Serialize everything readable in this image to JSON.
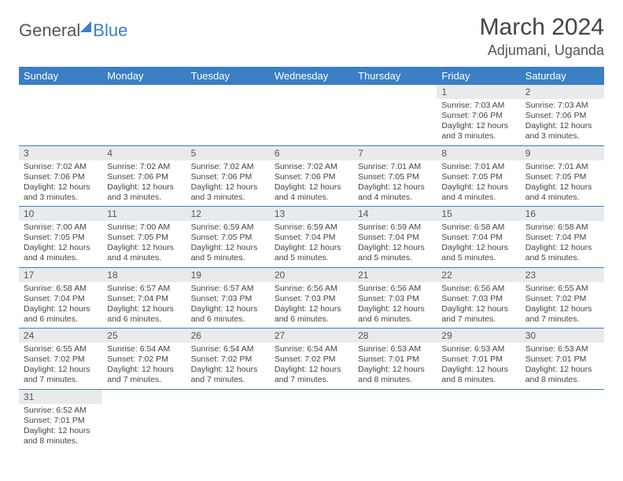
{
  "brand": {
    "part1": "General",
    "part2": "Blue"
  },
  "title": "March 2024",
  "location": "Adjumani, Uganda",
  "colors": {
    "header_bg": "#3b7fc4",
    "header_fg": "#ffffff",
    "row_divider": "#3b7fc4",
    "daynum_bg": "#e9eaeb",
    "text": "#444444",
    "page_bg": "#ffffff"
  },
  "daynames": [
    "Sunday",
    "Monday",
    "Tuesday",
    "Wednesday",
    "Thursday",
    "Friday",
    "Saturday"
  ],
  "weeks": [
    [
      {
        "blank": true
      },
      {
        "blank": true
      },
      {
        "blank": true
      },
      {
        "blank": true
      },
      {
        "blank": true
      },
      {
        "n": "1",
        "sr": "7:03 AM",
        "ss": "7:06 PM",
        "dl": "12 hours and 3 minutes."
      },
      {
        "n": "2",
        "sr": "7:03 AM",
        "ss": "7:06 PM",
        "dl": "12 hours and 3 minutes."
      }
    ],
    [
      {
        "n": "3",
        "sr": "7:02 AM",
        "ss": "7:06 PM",
        "dl": "12 hours and 3 minutes."
      },
      {
        "n": "4",
        "sr": "7:02 AM",
        "ss": "7:06 PM",
        "dl": "12 hours and 3 minutes."
      },
      {
        "n": "5",
        "sr": "7:02 AM",
        "ss": "7:06 PM",
        "dl": "12 hours and 3 minutes."
      },
      {
        "n": "6",
        "sr": "7:02 AM",
        "ss": "7:06 PM",
        "dl": "12 hours and 4 minutes."
      },
      {
        "n": "7",
        "sr": "7:01 AM",
        "ss": "7:05 PM",
        "dl": "12 hours and 4 minutes."
      },
      {
        "n": "8",
        "sr": "7:01 AM",
        "ss": "7:05 PM",
        "dl": "12 hours and 4 minutes."
      },
      {
        "n": "9",
        "sr": "7:01 AM",
        "ss": "7:05 PM",
        "dl": "12 hours and 4 minutes."
      }
    ],
    [
      {
        "n": "10",
        "sr": "7:00 AM",
        "ss": "7:05 PM",
        "dl": "12 hours and 4 minutes."
      },
      {
        "n": "11",
        "sr": "7:00 AM",
        "ss": "7:05 PM",
        "dl": "12 hours and 4 minutes."
      },
      {
        "n": "12",
        "sr": "6:59 AM",
        "ss": "7:05 PM",
        "dl": "12 hours and 5 minutes."
      },
      {
        "n": "13",
        "sr": "6:59 AM",
        "ss": "7:04 PM",
        "dl": "12 hours and 5 minutes."
      },
      {
        "n": "14",
        "sr": "6:59 AM",
        "ss": "7:04 PM",
        "dl": "12 hours and 5 minutes."
      },
      {
        "n": "15",
        "sr": "6:58 AM",
        "ss": "7:04 PM",
        "dl": "12 hours and 5 minutes."
      },
      {
        "n": "16",
        "sr": "6:58 AM",
        "ss": "7:04 PM",
        "dl": "12 hours and 5 minutes."
      }
    ],
    [
      {
        "n": "17",
        "sr": "6:58 AM",
        "ss": "7:04 PM",
        "dl": "12 hours and 6 minutes."
      },
      {
        "n": "18",
        "sr": "6:57 AM",
        "ss": "7:04 PM",
        "dl": "12 hours and 6 minutes."
      },
      {
        "n": "19",
        "sr": "6:57 AM",
        "ss": "7:03 PM",
        "dl": "12 hours and 6 minutes."
      },
      {
        "n": "20",
        "sr": "6:56 AM",
        "ss": "7:03 PM",
        "dl": "12 hours and 6 minutes."
      },
      {
        "n": "21",
        "sr": "6:56 AM",
        "ss": "7:03 PM",
        "dl": "12 hours and 6 minutes."
      },
      {
        "n": "22",
        "sr": "6:56 AM",
        "ss": "7:03 PM",
        "dl": "12 hours and 7 minutes."
      },
      {
        "n": "23",
        "sr": "6:55 AM",
        "ss": "7:02 PM",
        "dl": "12 hours and 7 minutes."
      }
    ],
    [
      {
        "n": "24",
        "sr": "6:55 AM",
        "ss": "7:02 PM",
        "dl": "12 hours and 7 minutes."
      },
      {
        "n": "25",
        "sr": "6:54 AM",
        "ss": "7:02 PM",
        "dl": "12 hours and 7 minutes."
      },
      {
        "n": "26",
        "sr": "6:54 AM",
        "ss": "7:02 PM",
        "dl": "12 hours and 7 minutes."
      },
      {
        "n": "27",
        "sr": "6:54 AM",
        "ss": "7:02 PM",
        "dl": "12 hours and 7 minutes."
      },
      {
        "n": "28",
        "sr": "6:53 AM",
        "ss": "7:01 PM",
        "dl": "12 hours and 8 minutes."
      },
      {
        "n": "29",
        "sr": "6:53 AM",
        "ss": "7:01 PM",
        "dl": "12 hours and 8 minutes."
      },
      {
        "n": "30",
        "sr": "6:53 AM",
        "ss": "7:01 PM",
        "dl": "12 hours and 8 minutes."
      }
    ],
    [
      {
        "n": "31",
        "sr": "6:52 AM",
        "ss": "7:01 PM",
        "dl": "12 hours and 8 minutes."
      },
      {
        "blank": true
      },
      {
        "blank": true
      },
      {
        "blank": true
      },
      {
        "blank": true
      },
      {
        "blank": true
      },
      {
        "blank": true
      }
    ]
  ],
  "labels": {
    "sunrise": "Sunrise: ",
    "sunset": "Sunset: ",
    "daylight": "Daylight: "
  }
}
